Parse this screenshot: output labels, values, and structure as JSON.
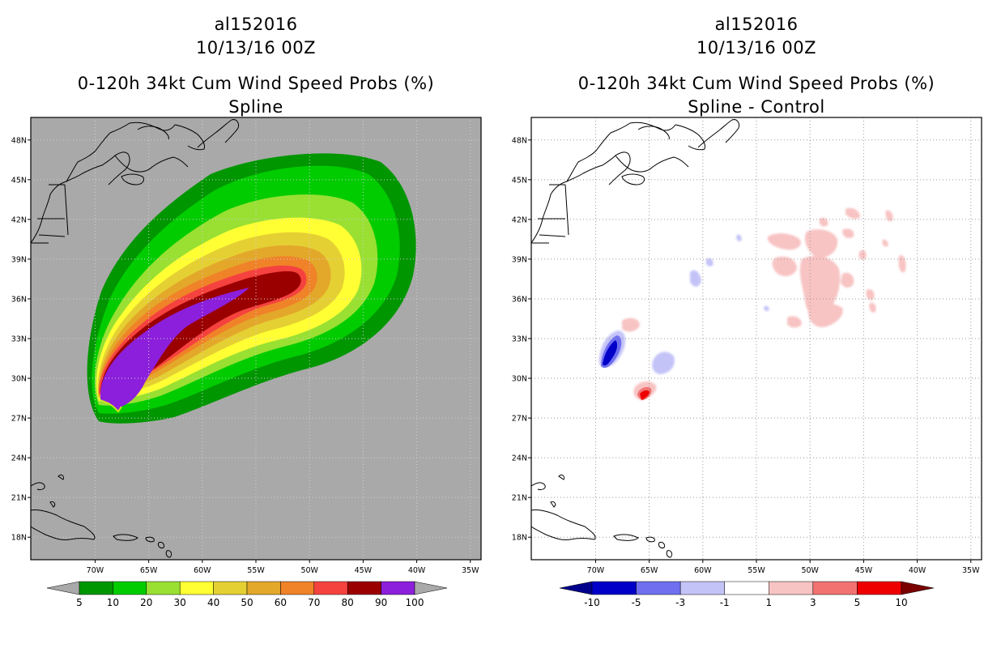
{
  "chart_data": [
    {
      "type": "heatmap",
      "storm_id": "al152016",
      "date": "10/13/16 00Z",
      "title": "0-120h 34kt Cum Wind Speed Probs (%)",
      "subtitle": "Spline",
      "xlabel": "",
      "ylabel": "",
      "lon_range": [
        -76,
        -34
      ],
      "lat_range": [
        16.3,
        49.7
      ],
      "lon_ticks": [
        "70W",
        "65W",
        "60W",
        "55W",
        "50W",
        "45W",
        "40W",
        "35W"
      ],
      "lon_tick_values": [
        -70,
        -65,
        -60,
        -55,
        -50,
        -45,
        -40,
        -35
      ],
      "lat_ticks": [
        "18N",
        "21N",
        "24N",
        "27N",
        "30N",
        "33N",
        "36N",
        "39N",
        "42N",
        "45N",
        "48N"
      ],
      "lat_tick_values": [
        18,
        21,
        24,
        27,
        30,
        33,
        36,
        39,
        42,
        45,
        48
      ],
      "grid": true,
      "background": "#a9a9a9",
      "colorbar": {
        "labels": [
          "5",
          "10",
          "20",
          "30",
          "40",
          "50",
          "60",
          "70",
          "80",
          "90",
          "100"
        ],
        "colors": [
          "#009600",
          "#00cc00",
          "#99e033",
          "#ffff33",
          "#e5d033",
          "#e3a82a",
          "#f08228",
          "#f5423f",
          "#9b0000",
          "#8c1fdb"
        ],
        "end_color": "#a9a9a9"
      }
    },
    {
      "type": "heatmap",
      "storm_id": "al152016",
      "date": "10/13/16 00Z",
      "title": "0-120h 34kt Cum Wind Speed Probs (%)",
      "subtitle": "Spline - Control",
      "xlabel": "",
      "ylabel": "",
      "lon_range": [
        -76,
        -34
      ],
      "lat_range": [
        16.3,
        49.7
      ],
      "lon_ticks": [
        "70W",
        "65W",
        "60W",
        "55W",
        "50W",
        "45W",
        "40W",
        "35W"
      ],
      "lon_tick_values": [
        -70,
        -65,
        -60,
        -55,
        -50,
        -45,
        -40,
        -35
      ],
      "lat_ticks": [
        "18N",
        "21N",
        "24N",
        "27N",
        "30N",
        "33N",
        "36N",
        "39N",
        "42N",
        "45N",
        "48N"
      ],
      "lat_tick_values": [
        18,
        21,
        24,
        27,
        30,
        33,
        36,
        39,
        42,
        45,
        48
      ],
      "grid": true,
      "background": "#ffffff",
      "colorbar": {
        "labels": [
          "-10",
          "-5",
          "-3",
          "-1",
          "1",
          "3",
          "5",
          "10"
        ],
        "colors": [
          "#0000c8",
          "#6f6ff0",
          "#c3c3f8",
          "#ffffff",
          "#f8c3c3",
          "#f27272",
          "#ee0000"
        ],
        "low_end_color": "#00008c",
        "high_end_color": "#7a0000"
      }
    }
  ]
}
